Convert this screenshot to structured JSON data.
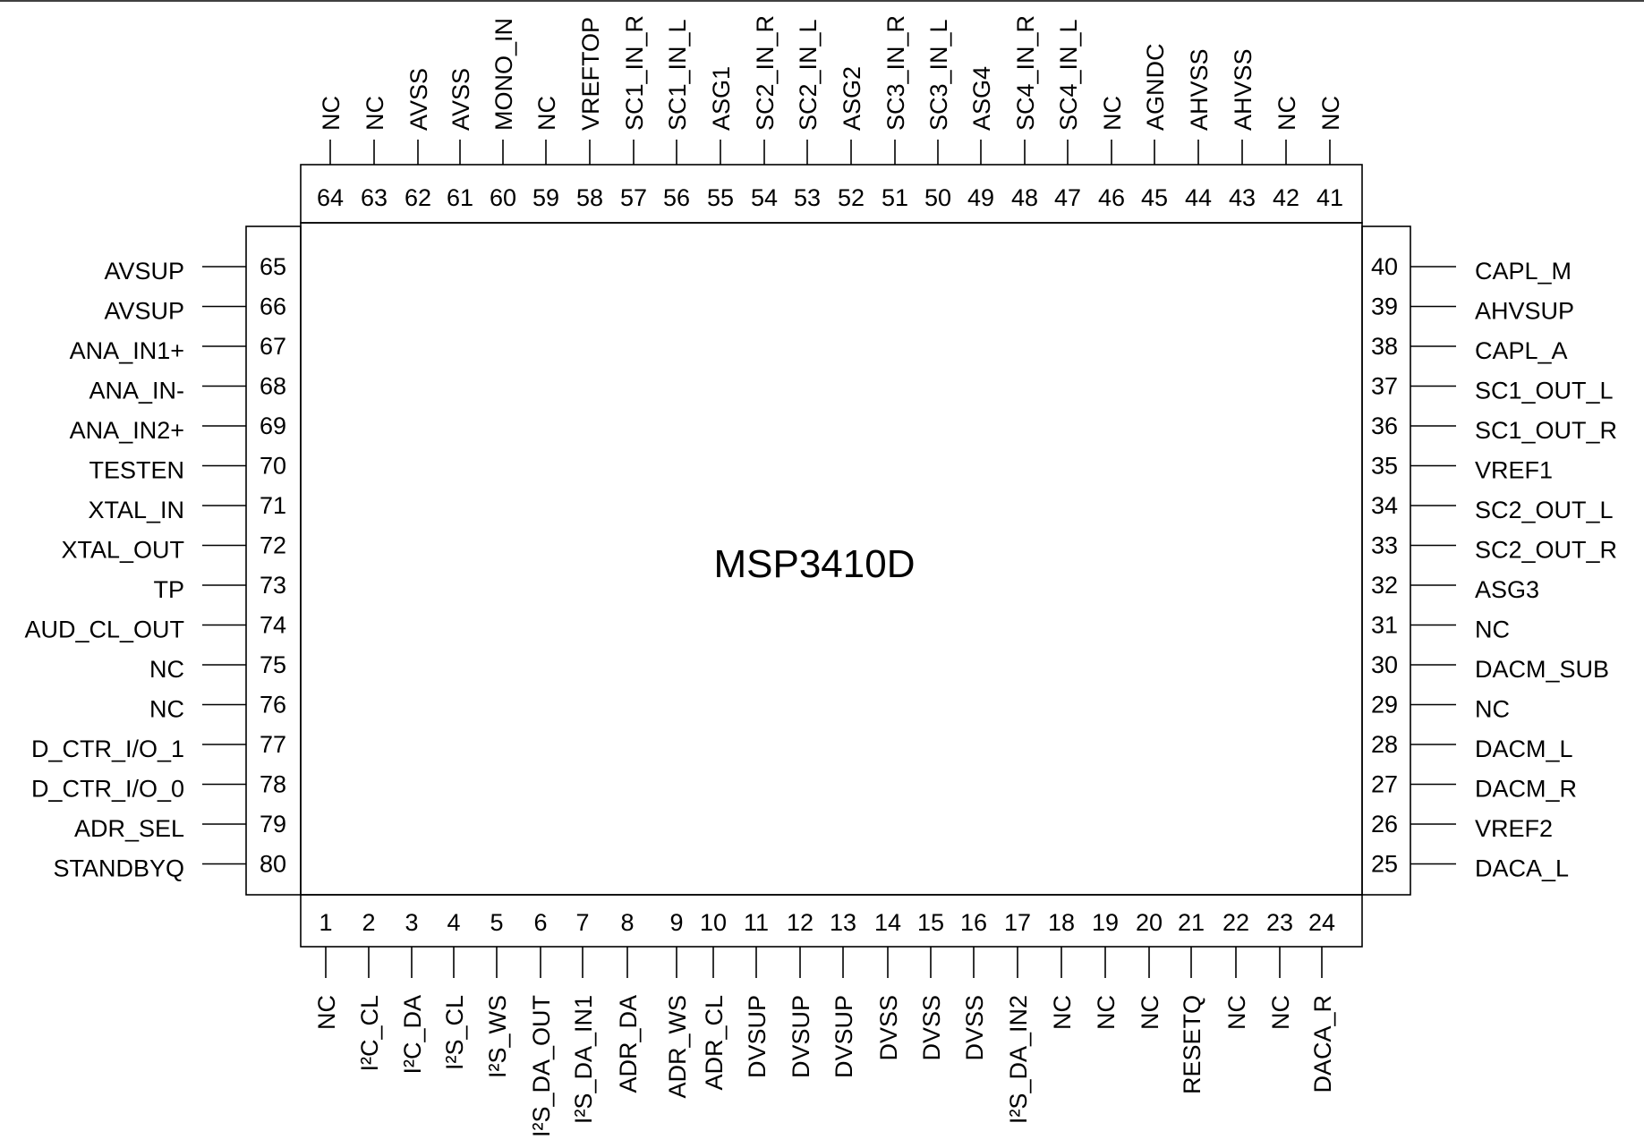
{
  "chip": {
    "name": "MSP3410D"
  },
  "colors": {
    "stroke": "#000000",
    "background": "#ffffff"
  },
  "pins": {
    "top": [
      {
        "num": "64",
        "name": "NC"
      },
      {
        "num": "63",
        "name": "NC"
      },
      {
        "num": "62",
        "name": "AVSS"
      },
      {
        "num": "61",
        "name": "AVSS"
      },
      {
        "num": "60",
        "name": "MONO_IN"
      },
      {
        "num": "59",
        "name": "NC"
      },
      {
        "num": "58",
        "name": "VREFTOP"
      },
      {
        "num": "57",
        "name": "SC1_IN_R"
      },
      {
        "num": "56",
        "name": "SC1_IN_L"
      },
      {
        "num": "55",
        "name": "ASG1"
      },
      {
        "num": "54",
        "name": "SC2_IN_R"
      },
      {
        "num": "53",
        "name": "SC2_IN_L"
      },
      {
        "num": "52",
        "name": "ASG2"
      },
      {
        "num": "51",
        "name": "SC3_IN_R"
      },
      {
        "num": "50",
        "name": "SC3_IN_L"
      },
      {
        "num": "49",
        "name": "ASG4"
      },
      {
        "num": "48",
        "name": "SC4_IN_R"
      },
      {
        "num": "47",
        "name": "SC4_IN_L"
      },
      {
        "num": "46",
        "name": "NC"
      },
      {
        "num": "45",
        "name": "AGNDC"
      },
      {
        "num": "44",
        "name": "AHVSS"
      },
      {
        "num": "43",
        "name": "AHVSS"
      },
      {
        "num": "42",
        "name": "NC"
      },
      {
        "num": "41",
        "name": "NC"
      }
    ],
    "bottom": [
      {
        "num": "1",
        "name": "NC"
      },
      {
        "num": "2",
        "name": "I²C_CL"
      },
      {
        "num": "3",
        "name": "I²C_DA"
      },
      {
        "num": "4",
        "name": "I²S_CL"
      },
      {
        "num": "5",
        "name": "I²S_WS"
      },
      {
        "num": "6",
        "name": "I²S_DA_OUT"
      },
      {
        "num": "7",
        "name": "I²S_DA_IN1"
      },
      {
        "num": "8",
        "name": "ADR_DA"
      },
      {
        "num": "9",
        "name": "ADR_WS"
      },
      {
        "num": "10",
        "name": "ADR_CL"
      },
      {
        "num": "11",
        "name": "DVSUP"
      },
      {
        "num": "12",
        "name": "DVSUP"
      },
      {
        "num": "13",
        "name": "DVSUP"
      },
      {
        "num": "14",
        "name": "DVSS"
      },
      {
        "num": "15",
        "name": "DVSS"
      },
      {
        "num": "16",
        "name": "DVSS"
      },
      {
        "num": "17",
        "name": "I²S_DA_IN2"
      },
      {
        "num": "18",
        "name": "NC"
      },
      {
        "num": "19",
        "name": "NC"
      },
      {
        "num": "20",
        "name": "NC"
      },
      {
        "num": "21",
        "name": "RESETQ"
      },
      {
        "num": "22",
        "name": "NC"
      },
      {
        "num": "23",
        "name": "NC"
      },
      {
        "num": "24",
        "name": "DACA_R"
      }
    ],
    "left": [
      {
        "num": "65",
        "name": "AVSUP"
      },
      {
        "num": "66",
        "name": "AVSUP"
      },
      {
        "num": "67",
        "name": "ANA_IN1+"
      },
      {
        "num": "68",
        "name": "ANA_IN-"
      },
      {
        "num": "69",
        "name": "ANA_IN2+"
      },
      {
        "num": "70",
        "name": "TESTEN"
      },
      {
        "num": "71",
        "name": "XTAL_IN"
      },
      {
        "num": "72",
        "name": "XTAL_OUT"
      },
      {
        "num": "73",
        "name": "TP"
      },
      {
        "num": "74",
        "name": "AUD_CL_OUT"
      },
      {
        "num": "75",
        "name": "NC"
      },
      {
        "num": "76",
        "name": "NC"
      },
      {
        "num": "77",
        "name": "D_CTR_I/O_1"
      },
      {
        "num": "78",
        "name": "D_CTR_I/O_0"
      },
      {
        "num": "79",
        "name": "ADR_SEL"
      },
      {
        "num": "80",
        "name": "STANDBYQ"
      }
    ],
    "right": [
      {
        "num": "40",
        "name": "CAPL_M"
      },
      {
        "num": "39",
        "name": "AHVSUP"
      },
      {
        "num": "38",
        "name": "CAPL_A"
      },
      {
        "num": "37",
        "name": "SC1_OUT_L"
      },
      {
        "num": "36",
        "name": "SC1_OUT_R"
      },
      {
        "num": "35",
        "name": "VREF1"
      },
      {
        "num": "34",
        "name": "SC2_OUT_L"
      },
      {
        "num": "33",
        "name": "SC2_OUT_R"
      },
      {
        "num": "32",
        "name": "ASG3"
      },
      {
        "num": "31",
        "name": "NC"
      },
      {
        "num": "30",
        "name": "DACM_SUB"
      },
      {
        "num": "29",
        "name": "NC"
      },
      {
        "num": "28",
        "name": "DACM_L"
      },
      {
        "num": "27",
        "name": "DACM_R"
      },
      {
        "num": "26",
        "name": "VREF2"
      },
      {
        "num": "25",
        "name": "DACA_L"
      }
    ]
  }
}
